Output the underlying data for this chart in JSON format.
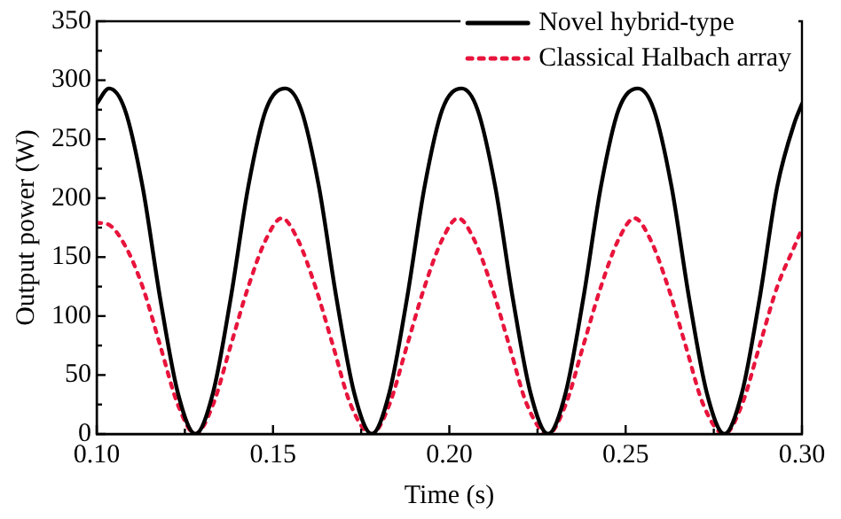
{
  "chart_data": {
    "type": "line",
    "xlabel": "Time (s)",
    "ylabel": "Output power (W)",
    "xlim": [
      0.1,
      0.3
    ],
    "xticks": [
      {
        "value": 0.1,
        "label": "0.10"
      },
      {
        "value": 0.15,
        "label": "0.15"
      },
      {
        "value": 0.2,
        "label": "0.20"
      },
      {
        "value": 0.25,
        "label": "0.25"
      },
      {
        "value": 0.3,
        "label": "0.30"
      }
    ],
    "ylim": [
      0,
      350
    ],
    "yticks": [
      0,
      50,
      100,
      150,
      200,
      250,
      300,
      350
    ],
    "grid": false,
    "legend": "top right",
    "marker": "none",
    "series": [
      {
        "name": "Novel hybrid-type",
        "color": "#000000",
        "line_style": "solid",
        "x": [
          0.1,
          0.1035,
          0.108,
          0.113,
          0.118,
          0.123,
          0.128,
          0.133,
          0.138,
          0.143,
          0.148,
          0.1535,
          0.158,
          0.163,
          0.168,
          0.173,
          0.178,
          0.183,
          0.188,
          0.193,
          0.198,
          0.2035,
          0.208,
          0.213,
          0.218,
          0.223,
          0.228,
          0.233,
          0.238,
          0.243,
          0.248,
          0.2535,
          0.258,
          0.263,
          0.268,
          0.273,
          0.278,
          0.283,
          0.288,
          0.293,
          0.298,
          0.3
        ],
        "values": [
          280,
          293,
          275,
          210,
          115,
          35,
          0,
          35,
          115,
          210,
          275,
          293,
          275,
          210,
          115,
          35,
          0,
          35,
          115,
          210,
          275,
          293,
          275,
          210,
          115,
          35,
          0,
          35,
          115,
          210,
          275,
          293,
          275,
          210,
          115,
          35,
          0,
          35,
          115,
          210,
          265,
          280
        ]
      },
      {
        "name": "Classical Halbach array",
        "color": "#e8143c",
        "line_style": "dotted",
        "x": [
          0.1,
          0.103,
          0.108,
          0.113,
          0.118,
          0.123,
          0.128,
          0.133,
          0.138,
          0.143,
          0.148,
          0.1525,
          0.157,
          0.162,
          0.167,
          0.172,
          0.178,
          0.183,
          0.188,
          0.193,
          0.198,
          0.2025,
          0.207,
          0.212,
          0.217,
          0.222,
          0.228,
          0.233,
          0.238,
          0.243,
          0.248,
          0.2525,
          0.257,
          0.262,
          0.267,
          0.272,
          0.278,
          0.283,
          0.288,
          0.293,
          0.298,
          0.3
        ],
        "values": [
          179,
          178,
          160,
          125,
          75,
          25,
          0,
          25,
          75,
          125,
          165,
          183,
          165,
          125,
          75,
          25,
          0,
          25,
          75,
          125,
          165,
          183,
          165,
          125,
          75,
          25,
          0,
          25,
          75,
          125,
          165,
          183,
          165,
          125,
          75,
          25,
          0,
          25,
          75,
          125,
          160,
          174
        ]
      }
    ]
  }
}
